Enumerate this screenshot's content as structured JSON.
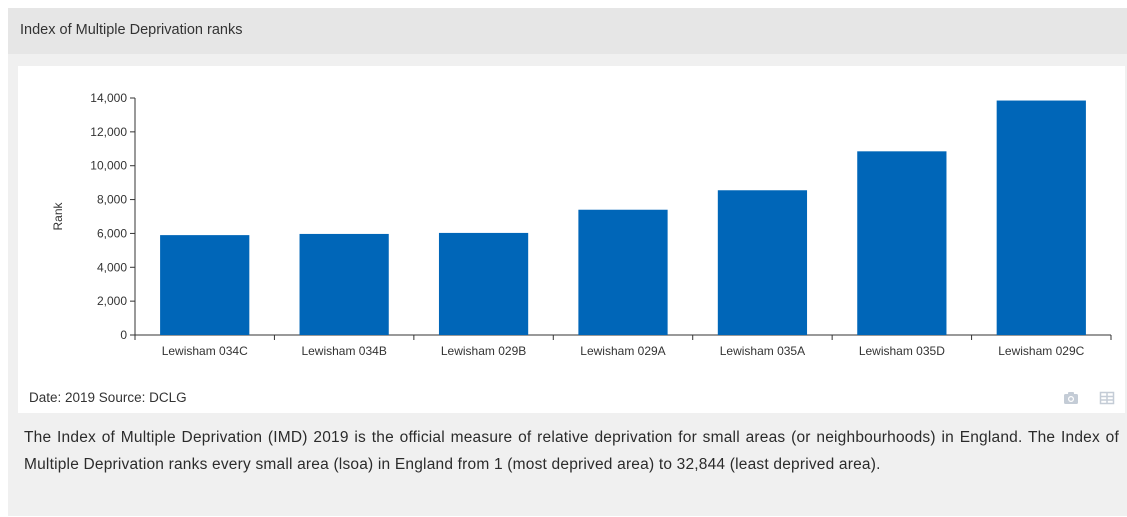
{
  "header": {
    "title": "Index of Multiple Deprivation ranks"
  },
  "footer": {
    "source_note": "Date: 2019 Source: DCLG"
  },
  "toolbar": {
    "camera_icon": "camera-icon",
    "table_icon": "table-icon"
  },
  "description": "The Index of Multiple Deprivation (IMD) 2019 is the official measure of relative deprivation for small areas (or neighbourhoods) in England. The Index of Multiple Deprivation ranks every small area (lsoa) in England from 1 (most deprived area) to 32,844 (least deprived area).",
  "colors": {
    "bar": "#0066b8",
    "header_bg": "#e6e6e6",
    "panel_bg": "#f0f0f0"
  },
  "chart_data": {
    "type": "bar",
    "categories": [
      "Lewisham 034C",
      "Lewisham 034B",
      "Lewisham 029B",
      "Lewisham 029A",
      "Lewisham 035A",
      "Lewisham 035D",
      "Lewisham 029C"
    ],
    "values": [
      5900,
      5970,
      6030,
      7400,
      8550,
      10850,
      13850
    ],
    "ylabel": "Rank",
    "xlabel": "",
    "ylim": [
      0,
      14000
    ],
    "yticks": [
      0,
      2000,
      4000,
      6000,
      8000,
      10000,
      12000,
      14000
    ],
    "ytick_labels": [
      "0",
      "2,000",
      "4,000",
      "6,000",
      "8,000",
      "10,000",
      "12,000",
      "14,000"
    ],
    "grid": false,
    "legend": "none"
  }
}
